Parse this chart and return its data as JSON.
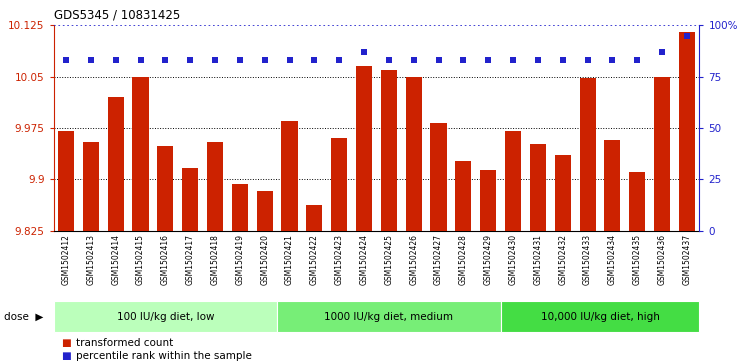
{
  "title": "GDS5345 / 10831425",
  "samples": [
    "GSM1502412",
    "GSM1502413",
    "GSM1502414",
    "GSM1502415",
    "GSM1502416",
    "GSM1502417",
    "GSM1502418",
    "GSM1502419",
    "GSM1502420",
    "GSM1502421",
    "GSM1502422",
    "GSM1502423",
    "GSM1502424",
    "GSM1502425",
    "GSM1502426",
    "GSM1502427",
    "GSM1502428",
    "GSM1502429",
    "GSM1502430",
    "GSM1502431",
    "GSM1502432",
    "GSM1502433",
    "GSM1502434",
    "GSM1502435",
    "GSM1502436",
    "GSM1502437"
  ],
  "bar_values": [
    9.97,
    9.955,
    10.02,
    10.05,
    9.948,
    9.916,
    9.955,
    9.893,
    9.883,
    9.985,
    9.862,
    9.96,
    10.065,
    10.06,
    10.05,
    9.982,
    9.927,
    9.913,
    9.97,
    9.952,
    9.936,
    10.048,
    9.958,
    9.91,
    10.05,
    10.115
  ],
  "percentile_values": [
    83,
    83,
    83,
    83,
    83,
    83,
    83,
    83,
    83,
    83,
    83,
    83,
    87,
    83,
    83,
    83,
    83,
    83,
    83,
    83,
    83,
    83,
    83,
    83,
    87,
    95
  ],
  "bar_color": "#cc2200",
  "dot_color": "#2222cc",
  "ylim_left": [
    9.825,
    10.125
  ],
  "ylim_right": [
    0,
    100
  ],
  "yticks_left": [
    9.825,
    9.9,
    9.975,
    10.05,
    10.125
  ],
  "ytick_labels_left": [
    "9.825",
    "9.9",
    "9.975",
    "10.05",
    "10.125"
  ],
  "yticks_right": [
    0,
    25,
    50,
    75,
    100
  ],
  "ytick_labels_right": [
    "0",
    "25",
    "50",
    "75",
    "100%"
  ],
  "dotted_lines": [
    9.9,
    9.975,
    10.05
  ],
  "groups": [
    {
      "label": "100 IU/kg diet, low",
      "start": 0,
      "end": 9,
      "color": "#bbffbb"
    },
    {
      "label": "1000 IU/kg diet, medium",
      "start": 9,
      "end": 18,
      "color": "#77ee77"
    },
    {
      "label": "10,000 IU/kg diet, high",
      "start": 18,
      "end": 26,
      "color": "#44dd44"
    }
  ],
  "dose_label": "dose",
  "legend_red": "transformed count",
  "legend_blue": "percentile rank within the sample",
  "bar_width": 0.65,
  "background_gray": "#cccccc",
  "top_border_color": "#4444ff"
}
